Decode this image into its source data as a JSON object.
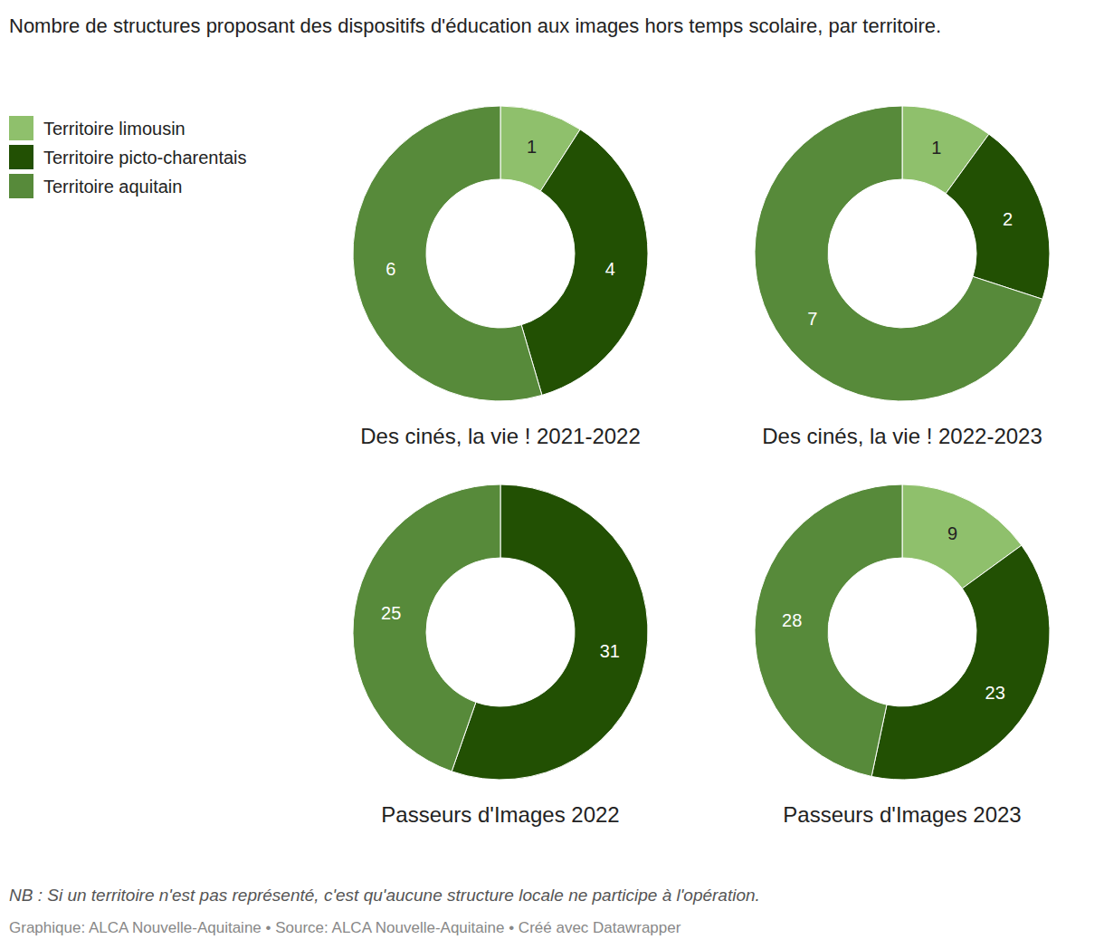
{
  "page": {
    "title": "Nombre de structures proposant des dispositifs d'éducation aux images hors temps scolaire, par territoire.",
    "note": "NB : Si un territoire n'est pas représenté, c'est qu'aucune structure locale ne participe à l'opération.",
    "credit": "Graphique: ALCA Nouvelle-Aquitaine • Source: ALCA Nouvelle-Aquitaine • Créé avec Datawrapper"
  },
  "chart_data": [
    {
      "type": "pie",
      "title": "Des cinés, la vie ! 2021-2022",
      "categories": [
        "Territoire limousin",
        "Territoire picto-charentais",
        "Territoire aquitain"
      ],
      "values": [
        1,
        4,
        6
      ],
      "colors": [
        "#8fc06c",
        "#225003",
        "#578a3a"
      ],
      "data_labels": true,
      "legend": "top-left"
    },
    {
      "type": "pie",
      "title": "Des cinés, la vie ! 2022-2023",
      "categories": [
        "Territoire limousin",
        "Territoire picto-charentais",
        "Territoire aquitain"
      ],
      "values": [
        1,
        2,
        7
      ],
      "colors": [
        "#8fc06c",
        "#225003",
        "#578a3a"
      ],
      "data_labels": true
    },
    {
      "type": "pie",
      "title": "Passeurs d'Images 2022",
      "categories": [
        "Territoire limousin",
        "Territoire picto-charentais",
        "Territoire aquitain"
      ],
      "values": [
        null,
        31,
        25
      ],
      "colors": [
        "#8fc06c",
        "#225003",
        "#578a3a"
      ],
      "data_labels": true
    },
    {
      "type": "pie",
      "title": "Passeurs d'Images 2023",
      "categories": [
        "Territoire limousin",
        "Territoire picto-charentais",
        "Territoire aquitain"
      ],
      "values": [
        9,
        23,
        28
      ],
      "colors": [
        "#8fc06c",
        "#225003",
        "#578a3a"
      ],
      "data_labels": true
    }
  ]
}
